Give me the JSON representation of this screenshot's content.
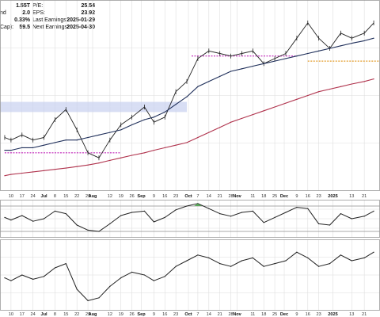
{
  "header": {
    "left": [
      {
        "label": "",
        "value": "1.55T"
      },
      {
        "label": "nd",
        "value": "2.0"
      },
      {
        "label": "",
        "value": "0.33%"
      },
      {
        "label": "Cap):",
        "value": "59.5"
      }
    ],
    "right": [
      {
        "label": "P/E:",
        "value": "25.54"
      },
      {
        "label": "EPS:",
        "value": "23.92"
      },
      {
        "label": "Last Earnings:",
        "value": "2025-01-29"
      },
      {
        "label": "Next Earnings:",
        "value": "2025-04-30"
      }
    ]
  },
  "chart_data": [
    {
      "type": "line",
      "panel": "price",
      "x": [
        "2024-06-06",
        "2024-06-10",
        "2024-06-17",
        "2024-06-24",
        "2024-07-01",
        "2024-07-08",
        "2024-07-15",
        "2024-07-22",
        "2024-07-29",
        "2024-08-05",
        "2024-08-12",
        "2024-08-19",
        "2024-08-26",
        "2024-09-03",
        "2024-09-09",
        "2024-09-16",
        "2024-09-23",
        "2024-09-30",
        "2024-10-07",
        "2024-10-14",
        "2024-10-21",
        "2024-10-28",
        "2024-11-04",
        "2024-11-11",
        "2024-11-18",
        "2024-11-25",
        "2024-12-02",
        "2024-12-09",
        "2024-12-16",
        "2024-12-23",
        "2024-12-30",
        "2025-01-06",
        "2025-01-13",
        "2025-01-21",
        "2025-01-27"
      ],
      "series": [
        {
          "values": [
            41,
            40,
            42,
            40,
            41,
            48,
            52,
            44,
            35,
            33,
            40,
            46,
            49,
            53,
            47,
            49,
            59,
            63,
            72,
            75,
            74,
            73,
            74,
            75,
            70,
            72,
            74,
            80,
            86,
            80,
            76,
            82,
            80,
            82,
            86
          ]
        },
        {
          "values": [
            36,
            36,
            37,
            37,
            38,
            39,
            40,
            40,
            41,
            42,
            43,
            44,
            46,
            48,
            49,
            51,
            54,
            57,
            61,
            63,
            65,
            67,
            68,
            69,
            70,
            71,
            72,
            73,
            74,
            75,
            76,
            77,
            78,
            79,
            80
          ]
        },
        {
          "values": [
            26,
            26.5,
            27,
            27.5,
            28,
            28.5,
            29,
            29.6,
            30.2,
            31,
            32,
            33,
            34,
            35,
            36,
            37,
            38,
            39,
            41,
            43,
            45,
            47,
            48.5,
            50,
            51.5,
            53,
            54.5,
            56,
            57.5,
            59,
            60,
            61,
            62,
            63,
            64
          ]
        }
      ],
      "ylim": [
        20,
        95
      ],
      "bands": [
        {
          "from": 51,
          "to": 53
        },
        {
          "from": 53,
          "to": 55
        }
      ],
      "reference_lines": [
        {
          "y": 35,
          "x_start": "2024-06-06",
          "x_end": "2024-08-19"
        },
        {
          "y": 73,
          "x_start": "2024-10-03",
          "x_end": "2024-12-09"
        },
        {
          "y": 71,
          "x_start": "2024-12-16",
          "x_end": "2025-01-31"
        }
      ],
      "tick_labels": [
        {
          "x": "2024-06-10",
          "label": "10",
          "bold": false
        },
        {
          "x": "2024-06-17",
          "label": "17",
          "bold": false
        },
        {
          "x": "2024-06-24",
          "label": "24",
          "bold": false
        },
        {
          "x": "2024-07-01",
          "label": "Jul",
          "bold": true
        },
        {
          "x": "2024-07-08",
          "label": "8",
          "bold": false
        },
        {
          "x": "2024-07-15",
          "label": "15",
          "bold": false
        },
        {
          "x": "2024-07-22",
          "label": "22",
          "bold": false
        },
        {
          "x": "2024-07-29",
          "label": "29",
          "bold": false
        },
        {
          "x": "2024-08-01",
          "label": "Aug",
          "bold": true
        },
        {
          "x": "2024-08-12",
          "label": "12",
          "bold": false
        },
        {
          "x": "2024-08-19",
          "label": "19",
          "bold": false
        },
        {
          "x": "2024-08-26",
          "label": "26",
          "bold": false
        },
        {
          "x": "2024-09-01",
          "label": "Sep",
          "bold": true
        },
        {
          "x": "2024-09-09",
          "label": "9",
          "bold": false
        },
        {
          "x": "2024-09-16",
          "label": "16",
          "bold": false
        },
        {
          "x": "2024-09-23",
          "label": "23",
          "bold": false
        },
        {
          "x": "2024-10-01",
          "label": "Oct",
          "bold": true
        },
        {
          "x": "2024-10-07",
          "label": "7",
          "bold": false
        },
        {
          "x": "2024-10-14",
          "label": "14",
          "bold": false
        },
        {
          "x": "2024-10-21",
          "label": "21",
          "bold": false
        },
        {
          "x": "2024-10-28",
          "label": "28",
          "bold": false
        },
        {
          "x": "2024-11-01",
          "label": "Nov",
          "bold": true
        },
        {
          "x": "2024-11-11",
          "label": "11",
          "bold": false
        },
        {
          "x": "2024-11-18",
          "label": "18",
          "bold": false
        },
        {
          "x": "2024-11-25",
          "label": "25",
          "bold": false
        },
        {
          "x": "2024-12-01",
          "label": "Dec",
          "bold": true
        },
        {
          "x": "2024-12-09",
          "label": "9",
          "bold": false
        },
        {
          "x": "2024-12-16",
          "label": "16",
          "bold": false
        },
        {
          "x": "2024-12-23",
          "label": "23",
          "bold": false
        },
        {
          "x": "2025-01-01",
          "label": "2025",
          "bold": true
        },
        {
          "x": "2025-01-13",
          "label": "13",
          "bold": false
        },
        {
          "x": "2025-01-21",
          "label": "21",
          "bold": false
        }
      ],
      "grid": true
    },
    {
      "type": "line",
      "panel": "indicator",
      "x": [
        "2024-06-06",
        "2024-06-10",
        "2024-06-17",
        "2024-06-24",
        "2024-07-01",
        "2024-07-08",
        "2024-07-15",
        "2024-07-22",
        "2024-07-29",
        "2024-08-05",
        "2024-08-12",
        "2024-08-19",
        "2024-08-26",
        "2024-09-03",
        "2024-09-09",
        "2024-09-16",
        "2024-09-23",
        "2024-09-30",
        "2024-10-07",
        "2024-10-14",
        "2024-10-21",
        "2024-10-28",
        "2024-11-04",
        "2024-11-11",
        "2024-11-18",
        "2024-11-25",
        "2024-12-02",
        "2024-12-09",
        "2024-12-16",
        "2024-12-23",
        "2024-12-30",
        "2025-01-06",
        "2025-01-13",
        "2025-01-21",
        "2025-01-27"
      ],
      "series": [
        {
          "values": [
            52,
            48,
            55,
            46,
            50,
            62,
            58,
            40,
            32,
            30,
            42,
            55,
            60,
            62,
            45,
            52,
            64,
            70,
            74,
            66,
            58,
            54,
            60,
            62,
            44,
            52,
            60,
            68,
            66,
            42,
            40,
            58,
            50,
            54,
            62
          ]
        }
      ],
      "ylim": [
        20,
        80
      ],
      "reference_lines": [
        {
          "y": 70
        },
        {
          "y": 30
        }
      ],
      "tick_labels": [
        {
          "x": "2024-06-10",
          "label": "10",
          "bold": false
        },
        {
          "x": "2024-06-17",
          "label": "17",
          "bold": false
        },
        {
          "x": "2024-06-24",
          "label": "24",
          "bold": false
        },
        {
          "x": "2024-07-01",
          "label": "Jul",
          "bold": true
        },
        {
          "x": "2024-07-08",
          "label": "8",
          "bold": false
        },
        {
          "x": "2024-07-15",
          "label": "15",
          "bold": false
        },
        {
          "x": "2024-07-22",
          "label": "22",
          "bold": false
        },
        {
          "x": "2024-07-29",
          "label": "29",
          "bold": false
        },
        {
          "x": "2024-08-01",
          "label": "Aug",
          "bold": true
        },
        {
          "x": "2024-08-12",
          "label": "12",
          "bold": false
        },
        {
          "x": "2024-08-19",
          "label": "19",
          "bold": false
        },
        {
          "x": "2024-08-26",
          "label": "26",
          "bold": false
        },
        {
          "x": "2024-09-01",
          "label": "Sep",
          "bold": true
        },
        {
          "x": "2024-09-09",
          "label": "9",
          "bold": false
        },
        {
          "x": "2024-09-16",
          "label": "16",
          "bold": false
        },
        {
          "x": "2024-09-23",
          "label": "23",
          "bold": false
        },
        {
          "x": "2024-10-01",
          "label": "Oct",
          "bold": true
        },
        {
          "x": "2024-10-07",
          "label": "7",
          "bold": false
        },
        {
          "x": "2024-10-14",
          "label": "14",
          "bold": false
        },
        {
          "x": "2024-10-21",
          "label": "21",
          "bold": false
        },
        {
          "x": "2024-10-28",
          "label": "28",
          "bold": false
        },
        {
          "x": "2024-11-01",
          "label": "Nov",
          "bold": true
        },
        {
          "x": "2024-11-11",
          "label": "11",
          "bold": false
        },
        {
          "x": "2024-11-18",
          "label": "18",
          "bold": false
        },
        {
          "x": "2024-11-25",
          "label": "25",
          "bold": false
        },
        {
          "x": "2024-12-01",
          "label": "Dec",
          "bold": true
        },
        {
          "x": "2024-12-09",
          "label": "9",
          "bold": false
        },
        {
          "x": "2024-12-16",
          "label": "16",
          "bold": false
        },
        {
          "x": "2024-12-23",
          "label": "23",
          "bold": false
        },
        {
          "x": "2025-01-01",
          "label": "2025",
          "bold": true
        },
        {
          "x": "2025-01-13",
          "label": "13",
          "bold": false
        },
        {
          "x": "2025-01-21",
          "label": "21",
          "bold": false
        }
      ],
      "grid": true
    },
    {
      "type": "line",
      "panel": "relative-strength",
      "x": [
        "2024-06-06",
        "2024-06-10",
        "2024-06-17",
        "2024-06-24",
        "2024-07-01",
        "2024-07-08",
        "2024-07-15",
        "2024-07-22",
        "2024-07-29",
        "2024-08-05",
        "2024-08-12",
        "2024-08-19",
        "2024-08-26",
        "2024-09-03",
        "2024-09-09",
        "2024-09-16",
        "2024-09-23",
        "2024-09-30",
        "2024-10-07",
        "2024-10-14",
        "2024-10-21",
        "2024-10-28",
        "2024-11-04",
        "2024-11-11",
        "2024-11-18",
        "2024-11-25",
        "2024-12-02",
        "2024-12-09",
        "2024-12-16",
        "2024-12-23",
        "2024-12-30",
        "2025-01-06",
        "2025-01-13",
        "2025-01-21",
        "2025-01-27"
      ],
      "series": [
        {
          "values": [
            48,
            46,
            50,
            47,
            49,
            55,
            58,
            40,
            32,
            34,
            42,
            48,
            52,
            50,
            46,
            49,
            56,
            60,
            64,
            62,
            58,
            56,
            60,
            62,
            56,
            58,
            60,
            66,
            62,
            56,
            58,
            64,
            60,
            62,
            66
          ]
        }
      ],
      "ylim": [
        25,
        75
      ],
      "tick_labels": [
        {
          "x": "2024-06-10",
          "label": "10",
          "bold": false
        },
        {
          "x": "2024-06-17",
          "label": "17",
          "bold": false
        },
        {
          "x": "2024-06-24",
          "label": "24",
          "bold": false
        },
        {
          "x": "2024-07-01",
          "label": "Jul",
          "bold": true
        },
        {
          "x": "2024-07-08",
          "label": "8",
          "bold": false
        },
        {
          "x": "2024-07-15",
          "label": "15",
          "bold": false
        },
        {
          "x": "2024-07-22",
          "label": "22",
          "bold": false
        },
        {
          "x": "2024-07-29",
          "label": "29",
          "bold": false
        },
        {
          "x": "2024-08-01",
          "label": "Aug",
          "bold": true
        },
        {
          "x": "2024-08-12",
          "label": "12",
          "bold": false
        },
        {
          "x": "2024-08-19",
          "label": "19",
          "bold": false
        },
        {
          "x": "2024-08-26",
          "label": "26",
          "bold": false
        },
        {
          "x": "2024-09-01",
          "label": "Sep",
          "bold": true
        },
        {
          "x": "2024-09-09",
          "label": "9",
          "bold": false
        },
        {
          "x": "2024-09-16",
          "label": "16",
          "bold": false
        },
        {
          "x": "2024-09-23",
          "label": "23",
          "bold": false
        },
        {
          "x": "2024-10-01",
          "label": "Oct",
          "bold": true
        },
        {
          "x": "2024-10-07",
          "label": "7",
          "bold": false
        },
        {
          "x": "2024-10-14",
          "label": "14",
          "bold": false
        },
        {
          "x": "2024-10-21",
          "label": "21",
          "bold": false
        },
        {
          "x": "2024-10-28",
          "label": "28",
          "bold": false
        },
        {
          "x": "2024-11-01",
          "label": "Nov",
          "bold": true
        },
        {
          "x": "2024-11-11",
          "label": "11",
          "bold": false
        },
        {
          "x": "2024-11-18",
          "label": "18",
          "bold": false
        },
        {
          "x": "2024-11-25",
          "label": "25",
          "bold": false
        },
        {
          "x": "2024-12-01",
          "label": "Dec",
          "bold": true
        },
        {
          "x": "2024-12-09",
          "label": "9",
          "bold": false
        },
        {
          "x": "2024-12-16",
          "label": "16",
          "bold": false
        },
        {
          "x": "2024-12-23",
          "label": "23",
          "bold": false
        },
        {
          "x": "2025-01-01",
          "label": "2025",
          "bold": true
        },
        {
          "x": "2025-01-13",
          "label": "13",
          "bold": false
        },
        {
          "x": "2025-01-21",
          "label": "21",
          "bold": false
        }
      ],
      "grid": true
    }
  ],
  "colors": {
    "price": "#222222",
    "ma_short": "#1f2f5a",
    "ma_long": "#b0334d",
    "band": "#c7d0f0",
    "ref_magenta": "#c023b8",
    "ref_orange": "#e39b2a",
    "grid": "#dedede",
    "osc_fill": "#3a9a3a",
    "osc_ref": "#8c8c8c"
  }
}
